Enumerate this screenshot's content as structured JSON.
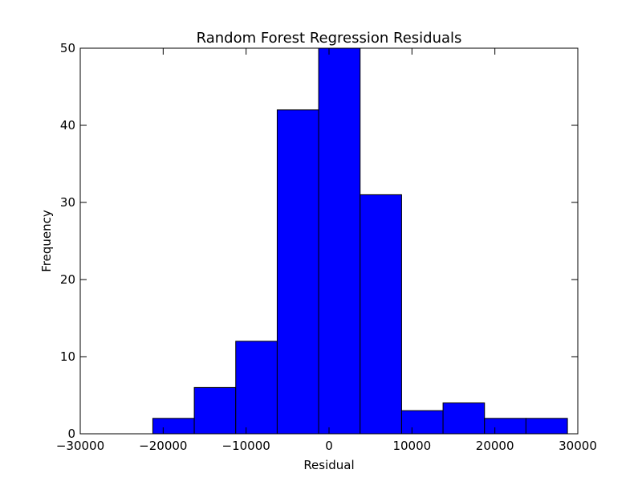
{
  "chart_data": {
    "type": "bar",
    "subtype": "histogram",
    "title": "Random Forest Regression Residuals",
    "xlabel": "Residual",
    "ylabel": "Frequency",
    "xlim": [
      -30000,
      30000
    ],
    "ylim": [
      0,
      50
    ],
    "x_ticks": [
      -30000,
      -20000,
      -10000,
      0,
      10000,
      20000,
      30000
    ],
    "x_tick_labels": [
      "−30000",
      "−20000",
      "−10000",
      "0",
      "10000",
      "20000",
      "30000"
    ],
    "y_ticks": [
      0,
      10,
      20,
      30,
      40,
      50
    ],
    "y_tick_labels": [
      "0",
      "10",
      "20",
      "30",
      "40",
      "50"
    ],
    "bin_edges": [
      -21250,
      -16250,
      -11250,
      -6250,
      -1250,
      3750,
      8750,
      13750,
      18750,
      23750,
      28750
    ],
    "values": [
      2,
      6,
      12,
      42,
      50,
      31,
      3,
      4,
      2,
      2
    ],
    "bar_color": "#0000ff",
    "edge_color": "#000000",
    "grid": false,
    "legend": "none"
  }
}
